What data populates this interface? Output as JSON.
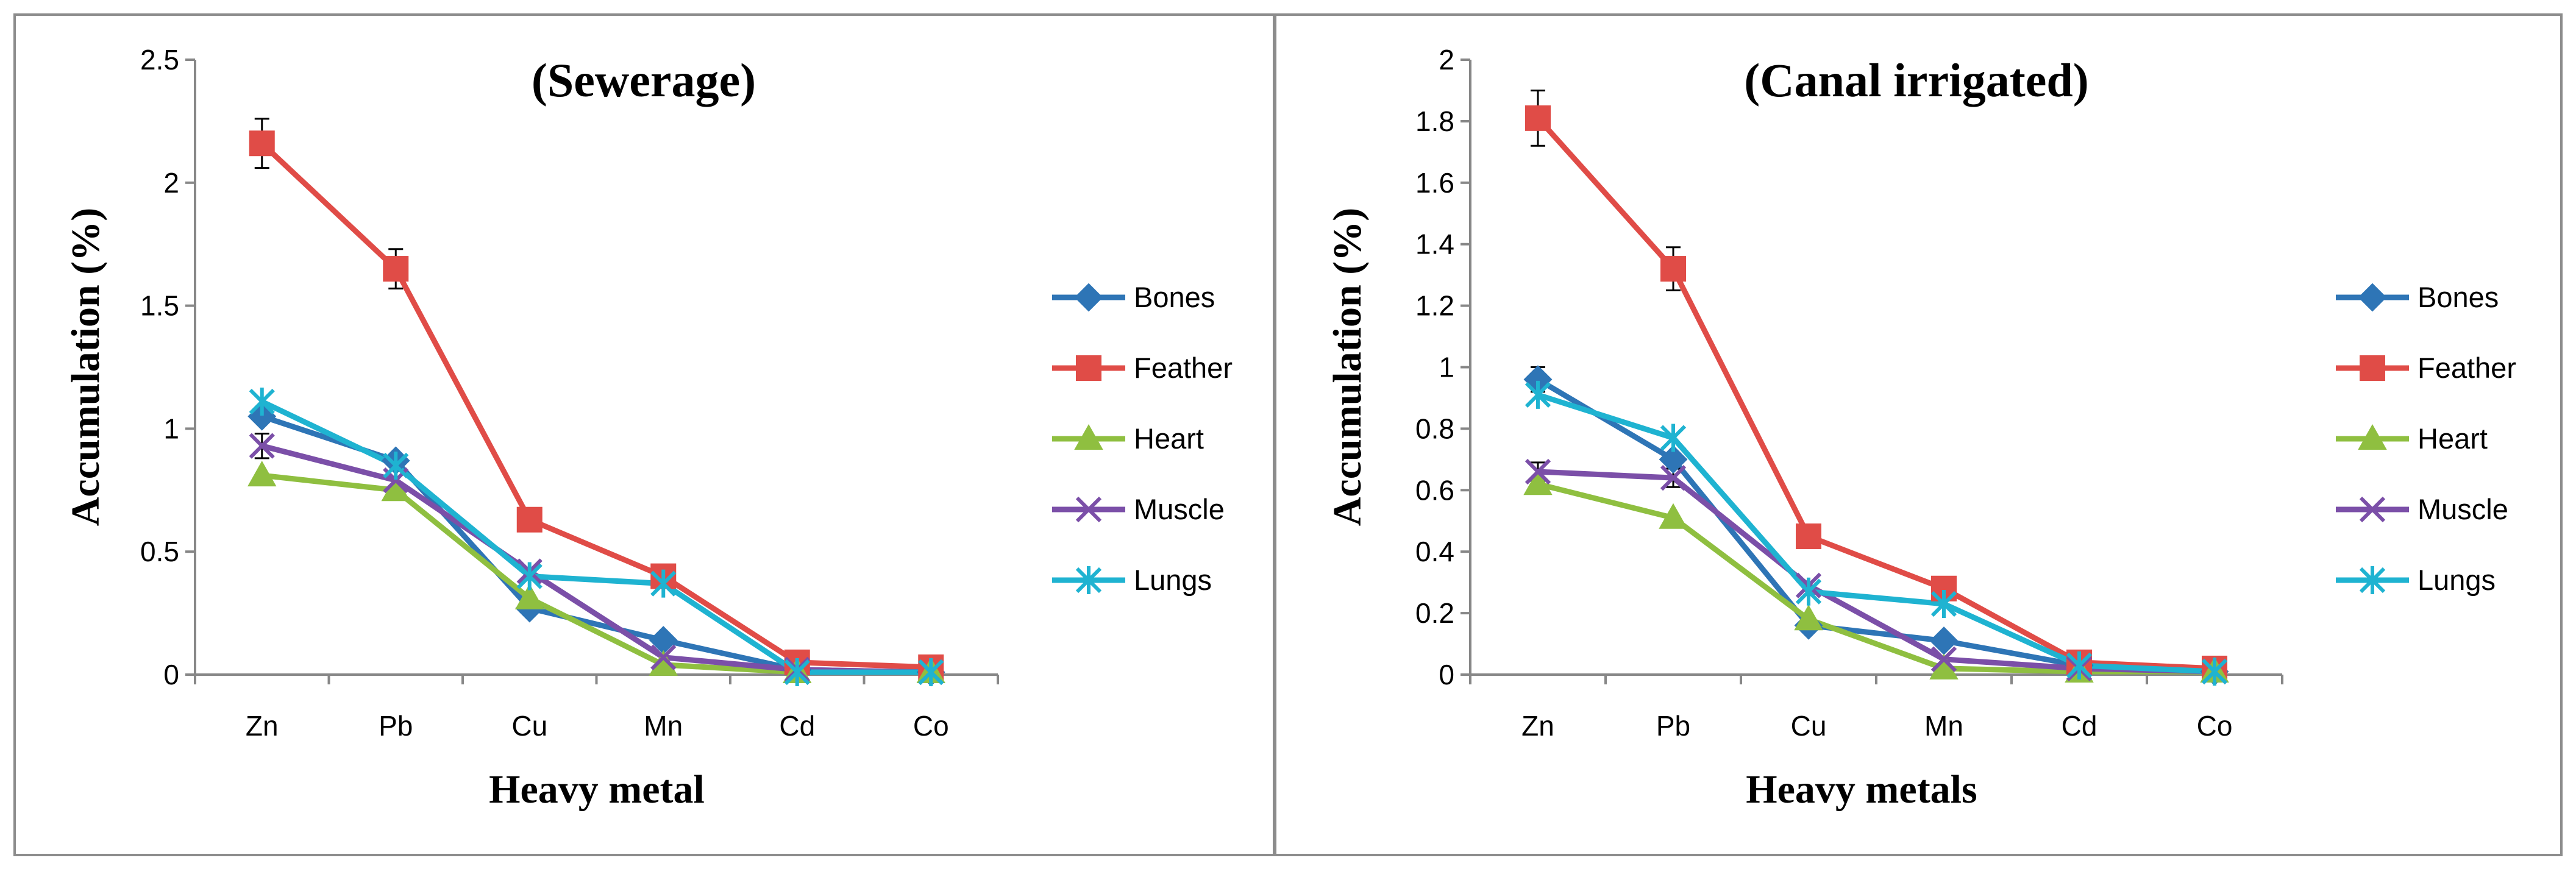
{
  "chart_data": [
    {
      "type": "line",
      "title": "(Sewerage)",
      "xlabel": "Heavy metal",
      "ylabel": "Accumulation (%)",
      "categories": [
        "Zn",
        "Pb",
        "Cu",
        "Mn",
        "Cd",
        "Co"
      ],
      "ylim": [
        0,
        2.5
      ],
      "yticks": [
        "0",
        "0.5",
        "1",
        "1.5",
        "2",
        "2.5"
      ],
      "ytick_values": [
        0,
        0.5,
        1,
        1.5,
        2,
        2.5
      ],
      "grid": false,
      "legend_position": "right",
      "series": [
        {
          "name": "Bones",
          "color": "#2e75b6",
          "marker": "diamond",
          "values": [
            1.05,
            0.87,
            0.27,
            0.14,
            0.02,
            0.01
          ]
        },
        {
          "name": "Feather",
          "color": "#e04c47",
          "marker": "square",
          "values": [
            2.16,
            1.65,
            0.63,
            0.4,
            0.05,
            0.03
          ],
          "error": [
            0.1,
            0.08,
            0,
            0,
            0,
            0
          ]
        },
        {
          "name": "Heart",
          "color": "#8fbf40",
          "marker": "triangle",
          "values": [
            0.81,
            0.75,
            0.31,
            0.04,
            0.01,
            0.01
          ]
        },
        {
          "name": "Muscle",
          "color": "#7b4fa8",
          "marker": "x",
          "values": [
            0.93,
            0.79,
            0.42,
            0.07,
            0.02,
            0.01
          ],
          "error": [
            0.05,
            0,
            0,
            0,
            0,
            0
          ]
        },
        {
          "name": "Lungs",
          "color": "#1fb3d1",
          "marker": "star",
          "values": [
            1.11,
            0.85,
            0.4,
            0.37,
            0.01,
            0.01
          ]
        }
      ]
    },
    {
      "type": "line",
      "title": "(Canal irrigated)",
      "xlabel": "Heavy metals",
      "ylabel": "Accumulation (%)",
      "categories": [
        "Zn",
        "Pb",
        "Cu",
        "Mn",
        "Cd",
        "Co"
      ],
      "ylim": [
        0,
        2
      ],
      "yticks": [
        "0",
        "0.2",
        "0.4",
        "0.6",
        "0.8",
        "1",
        "1.2",
        "1.4",
        "1.6",
        "1.8",
        "2"
      ],
      "ytick_values": [
        0,
        0.2,
        0.4,
        0.6,
        0.8,
        1,
        1.2,
        1.4,
        1.6,
        1.8,
        2
      ],
      "grid": false,
      "legend_position": "right",
      "series": [
        {
          "name": "Bones",
          "color": "#2e75b6",
          "marker": "diamond",
          "values": [
            0.96,
            0.7,
            0.16,
            0.11,
            0.03,
            0.01
          ],
          "error": [
            0.04,
            0,
            0,
            0,
            0,
            0
          ]
        },
        {
          "name": "Feather",
          "color": "#e04c47",
          "marker": "square",
          "values": [
            1.81,
            1.32,
            0.45,
            0.28,
            0.04,
            0.02
          ],
          "error": [
            0.09,
            0.07,
            0,
            0,
            0,
            0
          ]
        },
        {
          "name": "Heart",
          "color": "#8fbf40",
          "marker": "triangle",
          "values": [
            0.62,
            0.51,
            0.18,
            0.02,
            0.01,
            0.01
          ]
        },
        {
          "name": "Muscle",
          "color": "#7b4fa8",
          "marker": "x",
          "values": [
            0.66,
            0.64,
            0.29,
            0.05,
            0.02,
            0.01
          ],
          "error": [
            0.03,
            0.03,
            0,
            0,
            0,
            0
          ]
        },
        {
          "name": "Lungs",
          "color": "#1fb3d1",
          "marker": "star",
          "values": [
            0.91,
            0.77,
            0.27,
            0.23,
            0.03,
            0.01
          ]
        }
      ]
    }
  ]
}
